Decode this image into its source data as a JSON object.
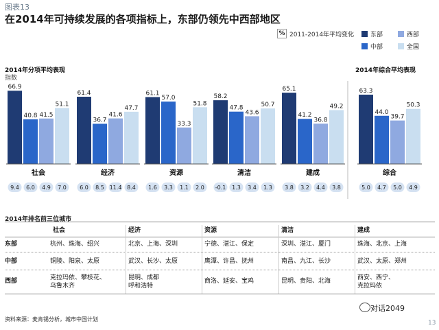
{
  "figure_label": "图表13",
  "headline": "在2014年可持续发展的各项指标上，东部仍领先中西部地区",
  "legend_hint": {
    "icon": "%",
    "text": "2011-2014年平均变化"
  },
  "legend": [
    {
      "name": "东部",
      "color": "#1f3b73"
    },
    {
      "name": "西部",
      "color": "#8fa9e0"
    },
    {
      "name": "中部",
      "color": "#2a66c9"
    },
    {
      "name": "全国",
      "color": "#c9def0"
    }
  ],
  "chart_data": [
    {
      "type": "bar",
      "title": "2014年分项平均表现",
      "ylabel": "指数",
      "categories": [
        "社会",
        "经济",
        "资源",
        "清洁",
        "建成"
      ],
      "series": [
        {
          "name": "东部",
          "values": [
            66.9,
            61.4,
            61.1,
            58.2,
            65.1
          ]
        },
        {
          "name": "中部",
          "values": [
            40.8,
            36.7,
            57.0,
            47.8,
            41.2
          ]
        },
        {
          "name": "西部",
          "values": [
            41.5,
            41.6,
            33.3,
            43.6,
            36.8
          ]
        },
        {
          "name": "全国",
          "values": [
            51.1,
            47.7,
            51.8,
            50.7,
            49.2
          ]
        }
      ],
      "changes": [
        [
          "9.4",
          "6.0",
          "4.9",
          "7.0"
        ],
        [
          "6.0",
          "8.5",
          "11.4",
          "8.4"
        ],
        [
          "1.6",
          "3.3",
          "1.1",
          "2.0"
        ],
        [
          "-0.1",
          "1.3",
          "3.4",
          "1.3"
        ],
        [
          "3.8",
          "3.2",
          "4.4",
          "3.8"
        ]
      ],
      "ylim": [
        0,
        70
      ]
    },
    {
      "type": "bar",
      "title": "2014年综合平均表现",
      "categories": [
        "综合"
      ],
      "series": [
        {
          "name": "东部",
          "values": [
            63.3
          ]
        },
        {
          "name": "中部",
          "values": [
            44.0
          ]
        },
        {
          "name": "西部",
          "values": [
            39.7
          ]
        },
        {
          "name": "全国",
          "values": [
            50.3
          ]
        }
      ],
      "changes": [
        [
          "5.0",
          "4.7",
          "5.0",
          "4.9"
        ]
      ],
      "ylim": [
        0,
        70
      ]
    }
  ],
  "table": {
    "title": "2014年排名前三位城市",
    "columns": [
      "社会",
      "经济",
      "资源",
      "清洁",
      "建成"
    ],
    "rows": [
      {
        "region": "东部",
        "cells": [
          [
            "杭州、珠海、绍兴"
          ],
          [
            "北京、上海、深圳"
          ],
          [
            "宁德、湛江、保定"
          ],
          [
            "深圳、湛江、厦门"
          ],
          [
            "珠海、北京、上海"
          ]
        ]
      },
      {
        "region": "中部",
        "cells": [
          [
            "铜陵、阳泉、太原"
          ],
          [
            "武汉、长沙、太原"
          ],
          [
            "鹰潭、许昌、抚州"
          ],
          [
            "南昌、九江、长沙"
          ],
          [
            "武汉、太原、郑州"
          ]
        ]
      },
      {
        "region": "西部",
        "cells": [
          [
            "克拉玛依、攀枝花、",
            "乌鲁木齐"
          ],
          [
            "昆明、成都",
            "呼和浩特"
          ],
          [
            "商洛、延安、宝鸡"
          ],
          [
            "昆明、贵阳、北海"
          ],
          [
            "西安、西宁、",
            "克拉玛依"
          ]
        ]
      }
    ]
  },
  "source": "资料来源：麦肯锡分析，城市中国计划",
  "brand": "对话2049",
  "page_number": "13"
}
